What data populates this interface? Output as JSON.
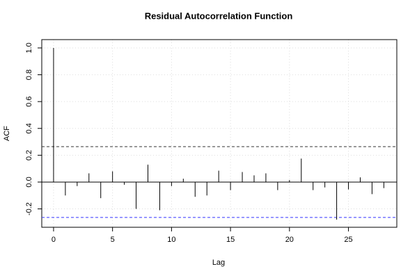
{
  "chart_data": {
    "type": "acf",
    "title": "Residual Autocorrelation Function",
    "x_label": "Lag",
    "y_label": "ACF",
    "x": [
      0,
      1,
      2,
      3,
      4,
      5,
      6,
      7,
      8,
      9,
      10,
      11,
      12,
      13,
      14,
      15,
      16,
      17,
      18,
      19,
      20,
      21,
      22,
      23,
      24,
      25,
      26,
      27,
      28
    ],
    "values": [
      1.0,
      -0.1,
      -0.03,
      0.065,
      -0.12,
      0.08,
      -0.02,
      -0.2,
      0.13,
      -0.21,
      -0.03,
      0.025,
      -0.11,
      -0.1,
      0.085,
      -0.06,
      0.075,
      0.05,
      0.065,
      -0.06,
      0.015,
      0.175,
      -0.06,
      -0.04,
      -0.28,
      -0.055,
      0.035,
      -0.09,
      -0.045
    ],
    "color": "#000000",
    "confidence_bounds": [
      {
        "value": 0.264,
        "color": "#333333"
      },
      {
        "value": -0.264,
        "color": "#3333ff"
      }
    ],
    "xlim": [
      -1.0,
      29.1
    ],
    "ylim": [
      -0.337,
      1.062
    ],
    "xticks": [
      0,
      5,
      10,
      15,
      20,
      25
    ],
    "yticks": [
      -0.2,
      {
        "value": 0,
        "label": "0.0"
      },
      0.2,
      0.4,
      0.6,
      0.8,
      {
        "value": 1,
        "label": "1.0"
      }
    ],
    "grid": true
  }
}
